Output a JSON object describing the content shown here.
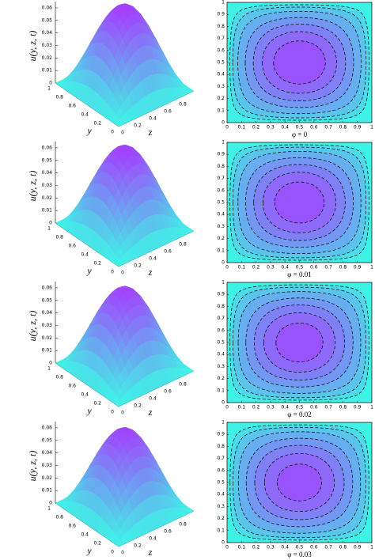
{
  "chart_data": [
    {
      "type": "surface",
      "zlabel": "u(y, z, t)",
      "ylabel": "y",
      "xlabel": "z",
      "peak_value": 0.065,
      "zlim": [
        0,
        0.065
      ],
      "zticks": [
        0,
        0.01,
        0.02,
        0.03,
        0.04,
        0.05,
        0.06
      ],
      "ylim": [
        0,
        1
      ],
      "yticks": [
        0,
        0.2,
        0.4,
        0.6,
        0.8,
        1
      ],
      "xlim": [
        0,
        1
      ],
      "xticks": [
        0,
        0.2,
        0.4,
        0.6,
        0.8
      ],
      "colors": [
        "#40f2e6",
        "#a63cff"
      ]
    },
    {
      "type": "contour",
      "caption": "φ = 0",
      "peak_value": 0.065,
      "levels": [
        0.004,
        0.008,
        0.015,
        0.025,
        0.035,
        0.045,
        0.055
      ],
      "xlim": [
        0,
        1
      ],
      "ylim": [
        0,
        1
      ],
      "xticks": [
        0,
        0.1,
        0.2,
        0.3,
        0.4,
        0.5,
        0.6,
        0.7,
        0.8,
        0.9,
        1
      ],
      "yticks": [
        0,
        0.1,
        0.2,
        0.3,
        0.4,
        0.5,
        0.6,
        0.7,
        0.8,
        0.9,
        1
      ],
      "colors": [
        "#40f2e6",
        "#a63cff"
      ]
    },
    {
      "type": "surface",
      "zlabel": "u(y, z, t)",
      "ylabel": "y",
      "xlabel": "z",
      "peak_value": 0.064,
      "zlim": [
        0,
        0.065
      ],
      "zticks": [
        0,
        0.01,
        0.02,
        0.03,
        0.04,
        0.05,
        0.06
      ],
      "ylim": [
        0,
        1
      ],
      "yticks": [
        0,
        0.2,
        0.4,
        0.6,
        0.8,
        1
      ],
      "xlim": [
        0,
        1
      ],
      "xticks": [
        0,
        0.2,
        0.4,
        0.6,
        0.8
      ],
      "colors": [
        "#40f2e6",
        "#a63cff"
      ]
    },
    {
      "type": "contour",
      "caption": "φ = 0.01",
      "peak_value": 0.064,
      "levels": [
        0.004,
        0.008,
        0.015,
        0.025,
        0.035,
        0.045,
        0.055
      ],
      "xlim": [
        0,
        1
      ],
      "ylim": [
        0,
        1
      ],
      "xticks": [
        0,
        0.1,
        0.2,
        0.3,
        0.4,
        0.5,
        0.6,
        0.7,
        0.8,
        0.9,
        1
      ],
      "yticks": [
        0,
        0.1,
        0.2,
        0.3,
        0.4,
        0.5,
        0.6,
        0.7,
        0.8,
        0.9,
        1
      ],
      "colors": [
        "#40f2e6",
        "#a63cff"
      ]
    },
    {
      "type": "surface",
      "zlabel": "u(y, z, t)",
      "ylabel": "y",
      "xlabel": "z",
      "peak_value": 0.063,
      "zlim": [
        0,
        0.065
      ],
      "zticks": [
        0,
        0.01,
        0.02,
        0.03,
        0.04,
        0.05,
        0.06
      ],
      "ylim": [
        0,
        1
      ],
      "yticks": [
        0,
        0.2,
        0.4,
        0.6,
        0.8,
        1
      ],
      "xlim": [
        0,
        1
      ],
      "xticks": [
        0,
        0.2,
        0.4,
        0.6,
        0.8
      ],
      "colors": [
        "#40f2e6",
        "#a63cff"
      ]
    },
    {
      "type": "contour",
      "caption": "φ = 0.02",
      "peak_value": 0.063,
      "levels": [
        0.004,
        0.008,
        0.015,
        0.025,
        0.035,
        0.045,
        0.055
      ],
      "xlim": [
        0,
        1
      ],
      "ylim": [
        0,
        1
      ],
      "xticks": [
        0,
        0.1,
        0.2,
        0.3,
        0.4,
        0.5,
        0.6,
        0.7,
        0.8,
        0.9,
        1
      ],
      "yticks": [
        0,
        0.1,
        0.2,
        0.3,
        0.4,
        0.5,
        0.6,
        0.7,
        0.8,
        0.9,
        1
      ],
      "colors": [
        "#40f2e6",
        "#a63cff"
      ]
    },
    {
      "type": "surface",
      "zlabel": "u(y, z, t)",
      "ylabel": "y",
      "xlabel": "z",
      "peak_value": 0.062,
      "zlim": [
        0,
        0.065
      ],
      "zticks": [
        0,
        0.01,
        0.02,
        0.03,
        0.04,
        0.05,
        0.06
      ],
      "ylim": [
        0,
        1
      ],
      "yticks": [
        0,
        0.2,
        0.4,
        0.6,
        0.8,
        1
      ],
      "xlim": [
        0,
        1
      ],
      "xticks": [
        0,
        0.2,
        0.4,
        0.6,
        0.8
      ],
      "colors": [
        "#40f2e6",
        "#a63cff"
      ]
    },
    {
      "type": "contour",
      "caption": "φ = 0.03",
      "peak_value": 0.062,
      "levels": [
        0.004,
        0.008,
        0.015,
        0.025,
        0.035,
        0.045,
        0.055
      ],
      "xlim": [
        0,
        1
      ],
      "ylim": [
        0,
        1
      ],
      "xticks": [
        0,
        0.1,
        0.2,
        0.3,
        0.4,
        0.5,
        0.6,
        0.7,
        0.8,
        0.9,
        1
      ],
      "yticks": [
        0,
        0.1,
        0.2,
        0.3,
        0.4,
        0.5,
        0.6,
        0.7,
        0.8,
        0.9,
        1
      ],
      "colors": [
        "#40f2e6",
        "#a63cff"
      ]
    }
  ]
}
